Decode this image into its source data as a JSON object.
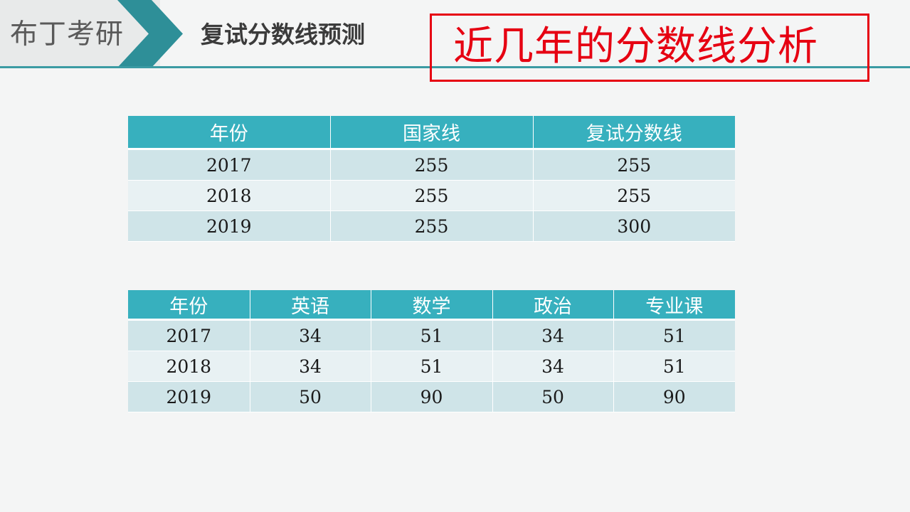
{
  "header": {
    "brand": "布丁考研",
    "section_title": "复试分数线预测",
    "callout": "近几年的分数线分析"
  },
  "colors": {
    "accent": "#37b0be",
    "rule": "#3b9ba3",
    "chevron": "#2e8f98",
    "callout_red": "#e60012",
    "row_odd": "#cfe4e8",
    "row_even": "#e8f1f3"
  },
  "table1": {
    "headers": [
      "年份",
      "国家线",
      "复试分数线"
    ],
    "rows": [
      [
        "2017",
        "255",
        "255"
      ],
      [
        "2018",
        "255",
        "255"
      ],
      [
        "2019",
        "255",
        "300"
      ]
    ]
  },
  "table2": {
    "headers": [
      "年份",
      "英语",
      "数学",
      "政治",
      "专业课"
    ],
    "rows": [
      [
        "2017",
        "34",
        "51",
        "34",
        "51"
      ],
      [
        "2018",
        "34",
        "51",
        "34",
        "51"
      ],
      [
        "2019",
        "50",
        "90",
        "50",
        "90"
      ]
    ]
  }
}
